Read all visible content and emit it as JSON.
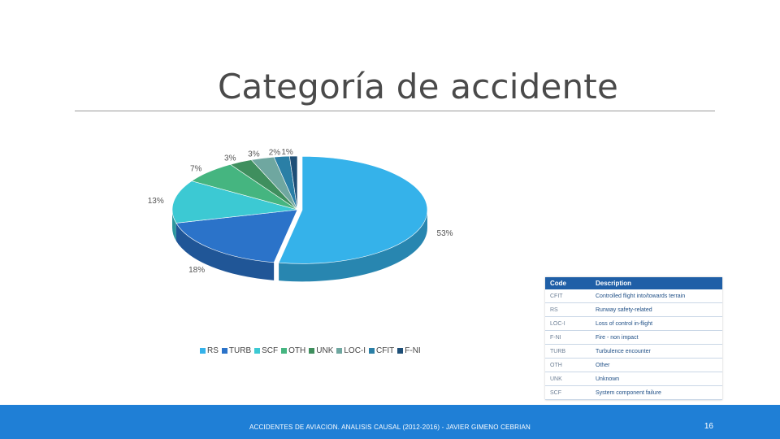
{
  "slide": {
    "title": "Categoría de accidente",
    "footer": "ACCIDENTES DE AVIACION. ANALISIS CAUSAL (2012-2016) - JAVIER GIMENO CEBRIAN",
    "page_number": "16"
  },
  "chart_data": {
    "type": "pie",
    "title": "",
    "style": "3d-exploded",
    "categories": [
      "RS",
      "TURB",
      "SCF",
      "OTH",
      "UNK",
      "LOC-I",
      "CFIT",
      "F-NI"
    ],
    "values": [
      53,
      18,
      13,
      7,
      3,
      3,
      2,
      1
    ],
    "data_labels": [
      "53%",
      "18%",
      "13%",
      "7%",
      "3%",
      "3%",
      "2%",
      "1%"
    ],
    "colors": [
      "#35b2ea",
      "#2b73c9",
      "#3cc9d3",
      "#45b580",
      "#3f8f5e",
      "#6fa7a0",
      "#2a7fa6",
      "#1e4f77"
    ],
    "legend_position": "bottom"
  },
  "code_table": {
    "headers": [
      "Code",
      "Description"
    ],
    "rows": [
      {
        "code": "CFIT",
        "description": "Controlled flight into/towards terrain"
      },
      {
        "code": "RS",
        "description": "Runway safety-related"
      },
      {
        "code": "LOC-I",
        "description": "Loss of control in-flight"
      },
      {
        "code": "F-NI",
        "description": "Fire - non impact"
      },
      {
        "code": "TURB",
        "description": "Turbulence encounter"
      },
      {
        "code": "OTH",
        "description": "Other"
      },
      {
        "code": "UNK",
        "description": "Unknown"
      },
      {
        "code": "SCF",
        "description": "System component failure"
      }
    ]
  }
}
